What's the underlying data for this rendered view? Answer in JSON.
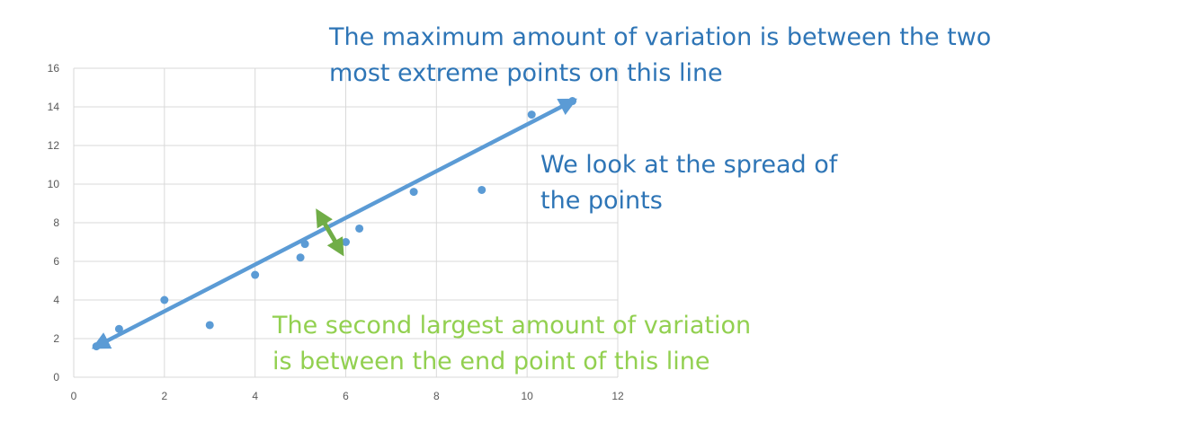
{
  "chart_data": {
    "type": "scatter",
    "title": "",
    "xlabel": "",
    "ylabel": "",
    "xlim": [
      0,
      12
    ],
    "ylim": [
      0,
      16
    ],
    "x_ticks": [
      0,
      2,
      4,
      6,
      8,
      10,
      12
    ],
    "y_ticks": [
      0,
      2,
      4,
      6,
      8,
      10,
      12,
      14,
      16
    ],
    "grid": true,
    "series": [
      {
        "points": [
          {
            "x": 0.5,
            "y": 1.6
          },
          {
            "x": 1.0,
            "y": 2.5
          },
          {
            "x": 2.0,
            "y": 4.0
          },
          {
            "x": 3.0,
            "y": 2.7
          },
          {
            "x": 4.0,
            "y": 5.3
          },
          {
            "x": 5.0,
            "y": 6.2
          },
          {
            "x": 5.1,
            "y": 6.9
          },
          {
            "x": 6.0,
            "y": 7.0
          },
          {
            "x": 6.3,
            "y": 7.7
          },
          {
            "x": 7.5,
            "y": 9.6
          },
          {
            "x": 9.0,
            "y": 9.7
          },
          {
            "x": 10.1,
            "y": 13.6
          },
          {
            "x": 11.0,
            "y": 14.3
          }
        ]
      }
    ],
    "arrows": [
      {
        "kind": "primary",
        "from": {
          "x": 0.5,
          "y": 1.6
        },
        "to": {
          "x": 11.0,
          "y": 14.3
        }
      },
      {
        "kind": "secondary",
        "from": {
          "x": 5.4,
          "y": 8.5
        },
        "to": {
          "x": 5.9,
          "y": 6.5
        }
      }
    ],
    "colors": {
      "points": "#5b9bd5",
      "primary_arrow": "#5b9bd5",
      "secondary_arrow": "#70ad47",
      "grid": "#d9d9d9",
      "tick_text": "#595959"
    }
  },
  "annotations": {
    "top": "The maximum amount of variation is between the two most extreme points on this line",
    "middle": "We look at the spread of the points",
    "bottom": "The second largest amount of variation is between the end point of this line"
  },
  "annotation_colors": {
    "top": "#2e75b6",
    "middle": "#2e75b6",
    "bottom": "#92d050"
  }
}
